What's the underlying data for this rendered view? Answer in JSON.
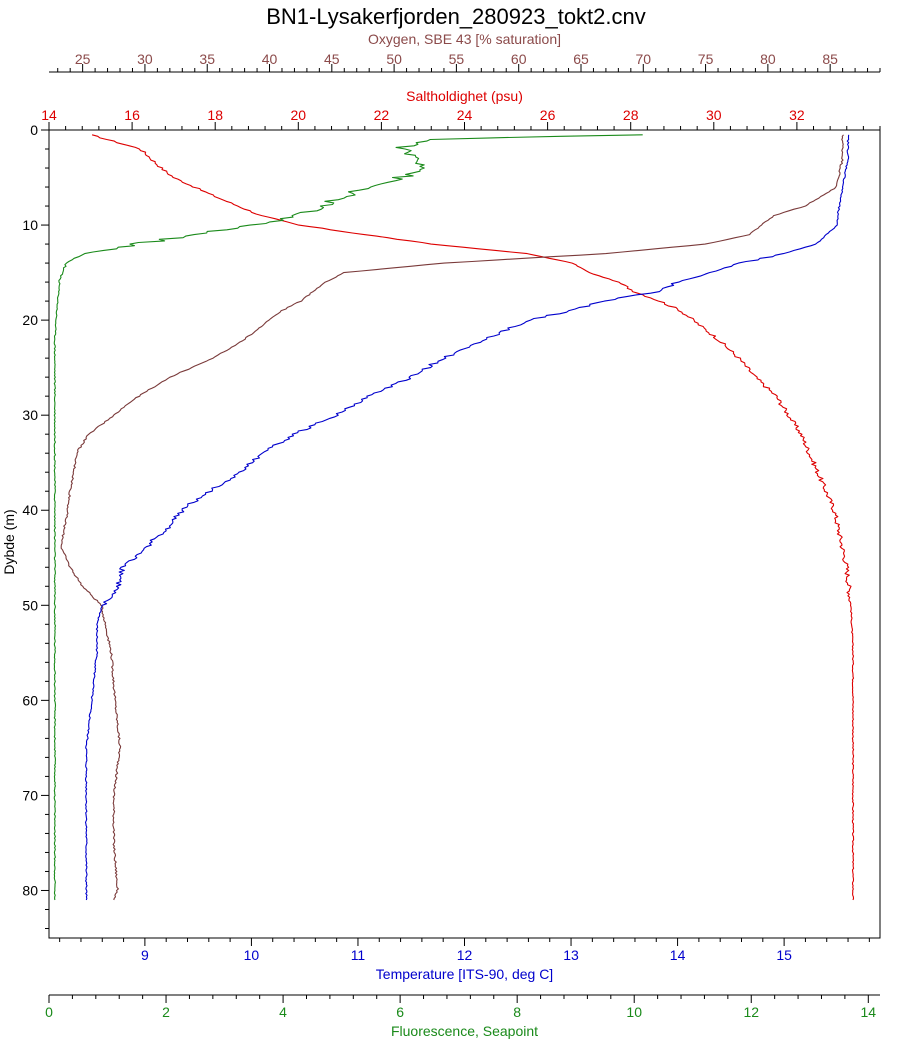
{
  "chart_data": {
    "type": "line",
    "title": "BN1-Lysakerfjorden_280923_tokt2.cnv",
    "depth_axis": {
      "label": "Dybde (m)",
      "range": [
        0,
        85
      ],
      "inverted": true,
      "ticks": [
        0,
        10,
        20,
        30,
        40,
        50,
        60,
        70,
        80
      ]
    },
    "axes": [
      {
        "key": "oxygen",
        "label": "Oxygen, SBE 43 [% saturation]",
        "color": "#8b4a4a",
        "position": "top",
        "range": [
          22.3,
          89
        ],
        "ticks": [
          25,
          30,
          35,
          40,
          45,
          50,
          55,
          60,
          65,
          70,
          75,
          80,
          85
        ]
      },
      {
        "key": "salinity",
        "label": "Saltholdighet (psu)",
        "color": "#dd0000",
        "position": "top",
        "range": [
          14,
          34
        ],
        "ticks": [
          14,
          16,
          18,
          20,
          22,
          24,
          26,
          28,
          30,
          32
        ]
      },
      {
        "key": "temperature",
        "label": "Temperature [ITS-90, deg C]",
        "color": "#0000cc",
        "position": "bottom",
        "range": [
          8.1,
          15.9
        ],
        "ticks": [
          9,
          10,
          11,
          12,
          13,
          14,
          15
        ]
      },
      {
        "key": "fluorescence",
        "label": "Fluorescence, Seapoint",
        "color": "#1a8a1a",
        "position": "bottom",
        "range": [
          0,
          14.2
        ],
        "ticks": [
          0,
          2,
          4,
          6,
          8,
          10,
          12,
          14
        ]
      }
    ],
    "series": [
      {
        "key": "salinity",
        "color": "#dd0000",
        "depth": [
          0.5,
          2,
          4,
          5,
          7,
          9,
          10,
          11,
          12,
          13,
          14,
          15,
          16,
          16.5,
          17,
          18,
          19,
          20,
          22,
          24,
          26,
          28,
          30,
          32,
          34,
          36,
          38,
          40,
          42,
          44,
          46,
          48,
          50,
          55,
          60,
          65,
          70,
          75,
          81
        ],
        "values": [
          15,
          16.2,
          16.7,
          17.0,
          18.0,
          19.1,
          20.0,
          21.6,
          23.2,
          25.5,
          26.6,
          27.0,
          27.7,
          27.9,
          28.1,
          28.7,
          29.2,
          29.5,
          30.1,
          30.6,
          31.0,
          31.5,
          31.8,
          32.1,
          32.3,
          32.5,
          32.7,
          32.9,
          33.0,
          33.1,
          33.2,
          33.25,
          33.3,
          33.35,
          33.35,
          33.35,
          33.35,
          33.35,
          33.35
        ]
      },
      {
        "key": "oxygen",
        "color": "#7a3a3a",
        "depth": [
          0.5,
          3,
          6,
          8,
          9,
          10,
          11,
          12,
          13,
          14,
          15,
          16,
          17,
          18,
          19,
          20,
          22,
          24,
          26,
          28,
          30,
          32,
          34,
          36,
          38,
          40,
          42,
          44,
          46,
          48,
          50,
          55,
          60,
          65,
          70,
          75,
          80,
          81
        ],
        "values": [
          86,
          86,
          85.5,
          83,
          80.5,
          79.5,
          78.5,
          75,
          67,
          54,
          46,
          44.5,
          43.5,
          42.5,
          41,
          40,
          38,
          35.5,
          32,
          29.5,
          27.5,
          25.5,
          24.5,
          24.3,
          24,
          23.8,
          23.5,
          23.3,
          24,
          25,
          26.5,
          27.3,
          27.6,
          28,
          27.5,
          27.5,
          27.8,
          27.5
        ]
      },
      {
        "key": "temperature",
        "color": "#0000cc",
        "depth": [
          0.5,
          3,
          6,
          9,
          10,
          12,
          13,
          14,
          15,
          16,
          17,
          18,
          19,
          20,
          22,
          24,
          26,
          28,
          30,
          32,
          34,
          36,
          38,
          40,
          42,
          44,
          46,
          48,
          50,
          52,
          55,
          60,
          65,
          70,
          75,
          81
        ],
        "values": [
          15.6,
          15.6,
          15.55,
          15.5,
          15.5,
          15.3,
          15.0,
          14.6,
          14.3,
          14.0,
          13.8,
          13.3,
          13.0,
          12.6,
          12.2,
          11.8,
          11.5,
          11.1,
          10.8,
          10.4,
          10.1,
          9.9,
          9.6,
          9.35,
          9.2,
          9.0,
          8.8,
          8.75,
          8.6,
          8.55,
          8.55,
          8.5,
          8.45,
          8.45,
          8.45,
          8.45
        ]
      },
      {
        "key": "fluorescence",
        "color": "#1a8a1a",
        "depth": [
          0.5,
          1,
          2,
          3,
          4,
          5,
          6,
          7,
          8,
          9,
          10,
          11,
          12,
          13,
          14,
          15,
          16,
          18,
          20,
          22,
          25,
          30,
          35,
          40,
          45,
          50,
          55,
          60,
          70,
          80,
          81
        ],
        "values": [
          10,
          6.5,
          6.0,
          6.3,
          6.5,
          6.0,
          5.5,
          5.0,
          4.7,
          4.2,
          3.5,
          2.5,
          1.5,
          0.6,
          0.3,
          0.22,
          0.18,
          0.15,
          0.12,
          0.1,
          0.1,
          0.1,
          0.1,
          0.1,
          0.1,
          0.1,
          0.1,
          0.1,
          0.1,
          0.1,
          0.1
        ]
      }
    ]
  }
}
